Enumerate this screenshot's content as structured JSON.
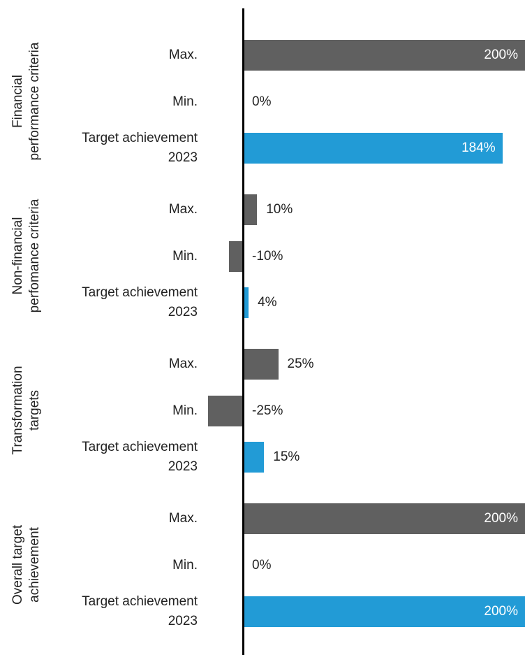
{
  "chart_data": {
    "type": "bar",
    "orientation": "horizontal",
    "xlim": [
      -25,
      200
    ],
    "groups": [
      {
        "name": "Financial performance criteria",
        "categories": [
          "Max.",
          "Min.",
          "Target achievement 2023"
        ],
        "values": [
          200,
          0,
          184
        ],
        "value_labels": [
          "200%",
          "0%",
          "184%"
        ],
        "colors": [
          "#606060",
          "#606060",
          "#229bd6"
        ]
      },
      {
        "name": "Non-financial perfomance criteria",
        "categories": [
          "Max.",
          "Min.",
          "Target achievement 2023"
        ],
        "values": [
          10,
          -10,
          4
        ],
        "value_labels": [
          "10%",
          "-10%",
          "4%"
        ],
        "colors": [
          "#606060",
          "#606060",
          "#229bd6"
        ]
      },
      {
        "name": "Transformation targets",
        "categories": [
          "Max.",
          "Min.",
          "Target achievement 2023"
        ],
        "values": [
          25,
          -25,
          15
        ],
        "value_labels": [
          "25%",
          "-25%",
          "15%"
        ],
        "colors": [
          "#606060",
          "#606060",
          "#229bd6"
        ]
      },
      {
        "name": "Overall target achievement",
        "categories": [
          "Max.",
          "Min.",
          "Target achievement 2023"
        ],
        "values": [
          200,
          0,
          200
        ],
        "value_labels": [
          "200%",
          "0%",
          "200%"
        ],
        "colors": [
          "#606060",
          "#606060",
          "#229bd6"
        ]
      }
    ]
  }
}
